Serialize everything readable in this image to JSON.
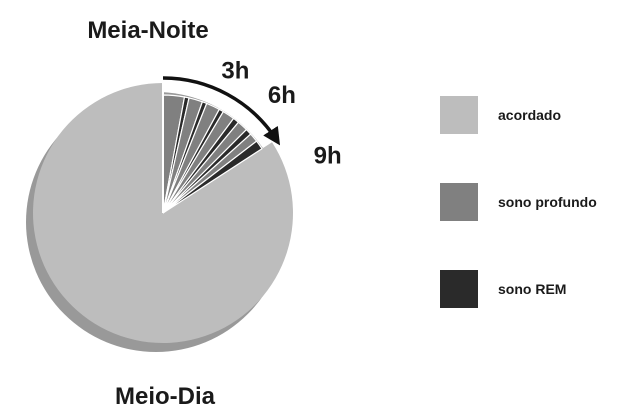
{
  "chart_data": {
    "type": "pie",
    "top_label": "Meia-Noite",
    "bottom_label": "Meio-Dia",
    "slices": [
      {
        "category": "acordado",
        "start_hour": 3.8,
        "end_hour": 24
      },
      {
        "category": "sono profundo",
        "start_hour": 0,
        "end_hour": 0.7
      },
      {
        "category": "sono REM",
        "start_hour": 0.7,
        "end_hour": 0.85
      },
      {
        "category": "sono profundo",
        "start_hour": 0.85,
        "end_hour": 1.3
      },
      {
        "category": "sono REM",
        "start_hour": 1.3,
        "end_hour": 1.45
      },
      {
        "category": "sono profundo",
        "start_hour": 1.45,
        "end_hour": 1.9
      },
      {
        "category": "sono REM",
        "start_hour": 1.9,
        "end_hour": 2.05
      },
      {
        "category": "sono profundo",
        "start_hour": 2.05,
        "end_hour": 2.45
      },
      {
        "category": "sono REM",
        "start_hour": 2.45,
        "end_hour": 2.65
      },
      {
        "category": "sono profundo",
        "start_hour": 2.65,
        "end_hour": 3.0
      },
      {
        "category": "sono REM",
        "start_hour": 3.0,
        "end_hour": 3.2
      },
      {
        "category": "sono profundo",
        "start_hour": 3.2,
        "end_hour": 3.5
      },
      {
        "category": "sono REM",
        "start_hour": 3.5,
        "end_hour": 3.8
      }
    ],
    "arrow": {
      "from_hour": 0,
      "to_hour": 3.8
    },
    "hour_labels": [
      {
        "text": "3h",
        "hour": 1.2
      },
      {
        "text": "6h",
        "hour": 2.55
      },
      {
        "text": "9h",
        "hour": 4.5
      }
    ],
    "legend": {
      "position": "right",
      "items": [
        {
          "label": "acordado",
          "color": "#bdbdbd"
        },
        {
          "label": "sono profundo",
          "color": "#808080"
        },
        {
          "label": "sono REM",
          "color": "#2a2a2a"
        }
      ]
    },
    "colors": {
      "acordado": "#bdbdbd",
      "sono profundo": "#808080",
      "sono REM": "#2a2a2a",
      "shadow": "#999999",
      "outline": "#ffffff",
      "arrow": "#111111"
    }
  }
}
